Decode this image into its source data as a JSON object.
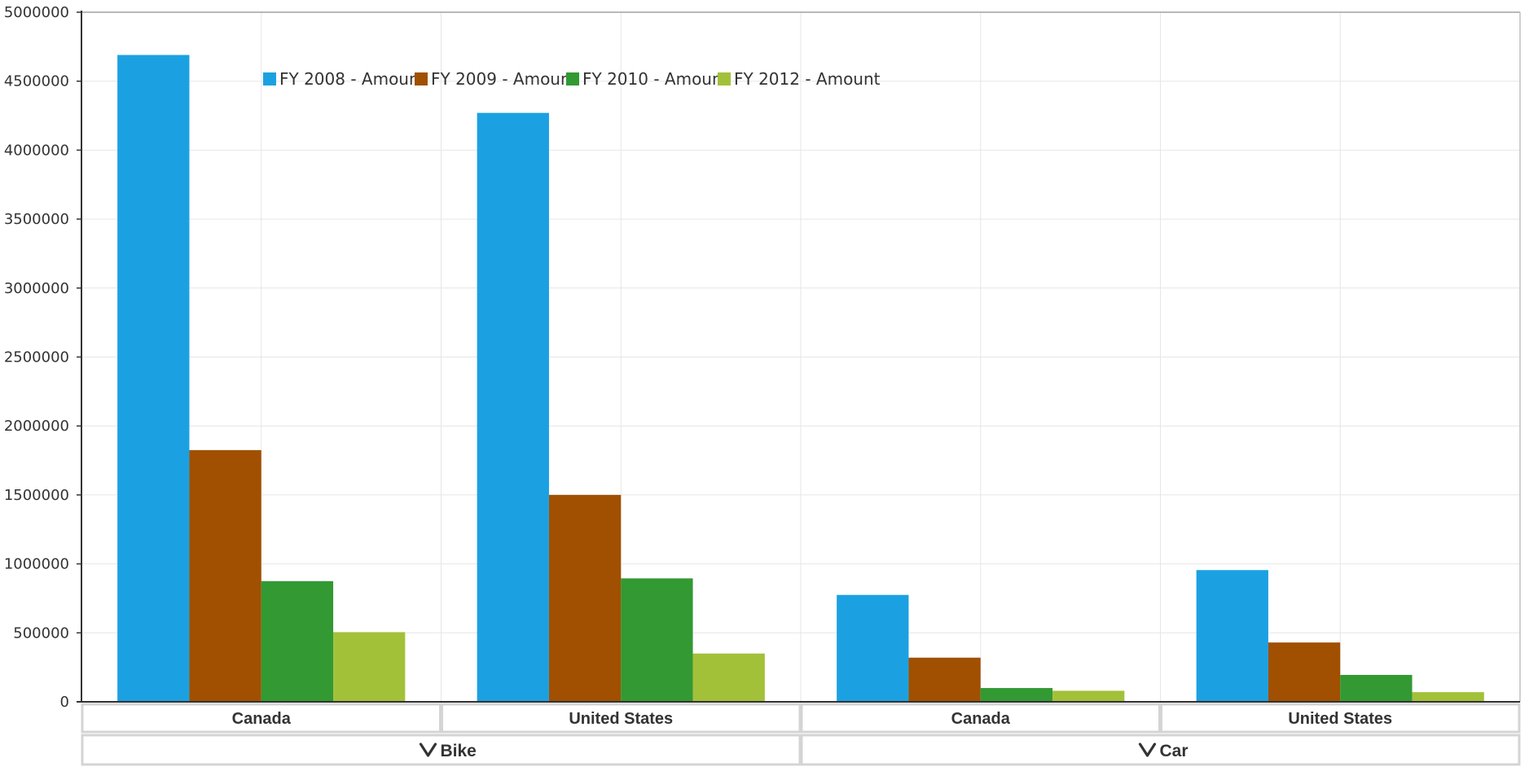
{
  "chart_data": {
    "type": "bar",
    "ylim": [
      0,
      5000000
    ],
    "y_ticks": [
      "0",
      "500000",
      "1000000",
      "1500000",
      "2000000",
      "2500000",
      "3000000",
      "3500000",
      "4000000",
      "4500000",
      "5000000"
    ],
    "grid": true,
    "legend_position": "top-left",
    "groups": [
      {
        "label": "Bike",
        "categories": [
          "Canada",
          "United States"
        ]
      },
      {
        "label": "Car",
        "categories": [
          "Canada",
          "United States"
        ]
      }
    ],
    "categories": [
      "Canada",
      "United States",
      "Canada",
      "United States"
    ],
    "series": [
      {
        "name": "FY 2008 - Amount",
        "color": "#1BA1E2",
        "values": [
          4690000,
          4270000,
          775000,
          955000
        ]
      },
      {
        "name": "FY 2009 - Amount",
        "color": "#A05000",
        "values": [
          1825000,
          1500000,
          320000,
          430000
        ]
      },
      {
        "name": "FY 2010 - Amount",
        "color": "#339933",
        "values": [
          875000,
          895000,
          100000,
          195000
        ]
      },
      {
        "name": "FY 2012 - Amount",
        "color": "#A2C139",
        "values": [
          505000,
          350000,
          80000,
          70000
        ]
      }
    ]
  }
}
